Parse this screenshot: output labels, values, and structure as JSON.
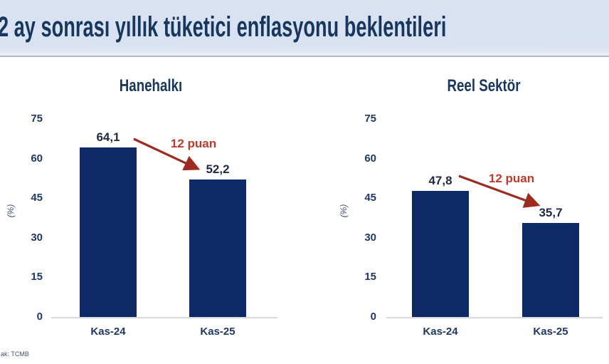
{
  "header": {
    "title": "2 ay sonrası yıllık tüketici enflasyonu beklentileri"
  },
  "footer": {
    "source": "ak: TCMB"
  },
  "colors": {
    "header_bg": "#d9e2f0",
    "title_text": "#17375e",
    "bar": "#0d2a66",
    "axis_label": "#1f3864",
    "value_label": "#1f2a44",
    "annotation_red": "#c0392b",
    "arrow_red": "#9e2b20",
    "axis_line": "#d9d9d9",
    "muted": "#44546a"
  },
  "chart_data": [
    {
      "type": "bar",
      "title": "Hanehalkı",
      "categories": [
        "Kas-24",
        "Kas-25"
      ],
      "values": [
        64.1,
        52.2
      ],
      "value_labels": [
        "64,1",
        "52,2"
      ],
      "annotation": "12 puan",
      "ylabel": "(%)",
      "yticks": [
        75,
        60,
        45,
        30,
        15,
        0
      ],
      "ylim": [
        0,
        75
      ],
      "grid": false,
      "legend": false
    },
    {
      "type": "bar",
      "title": "Reel Sektör",
      "categories": [
        "Kas-24",
        "Kas-25"
      ],
      "values": [
        47.8,
        35.7
      ],
      "value_labels": [
        "47,8",
        "35,7"
      ],
      "annotation": "12 puan",
      "ylabel": "(%)",
      "yticks": [
        75,
        60,
        45,
        30,
        15,
        0
      ],
      "ylim": [
        0,
        75
      ],
      "grid": false,
      "legend": false
    }
  ]
}
